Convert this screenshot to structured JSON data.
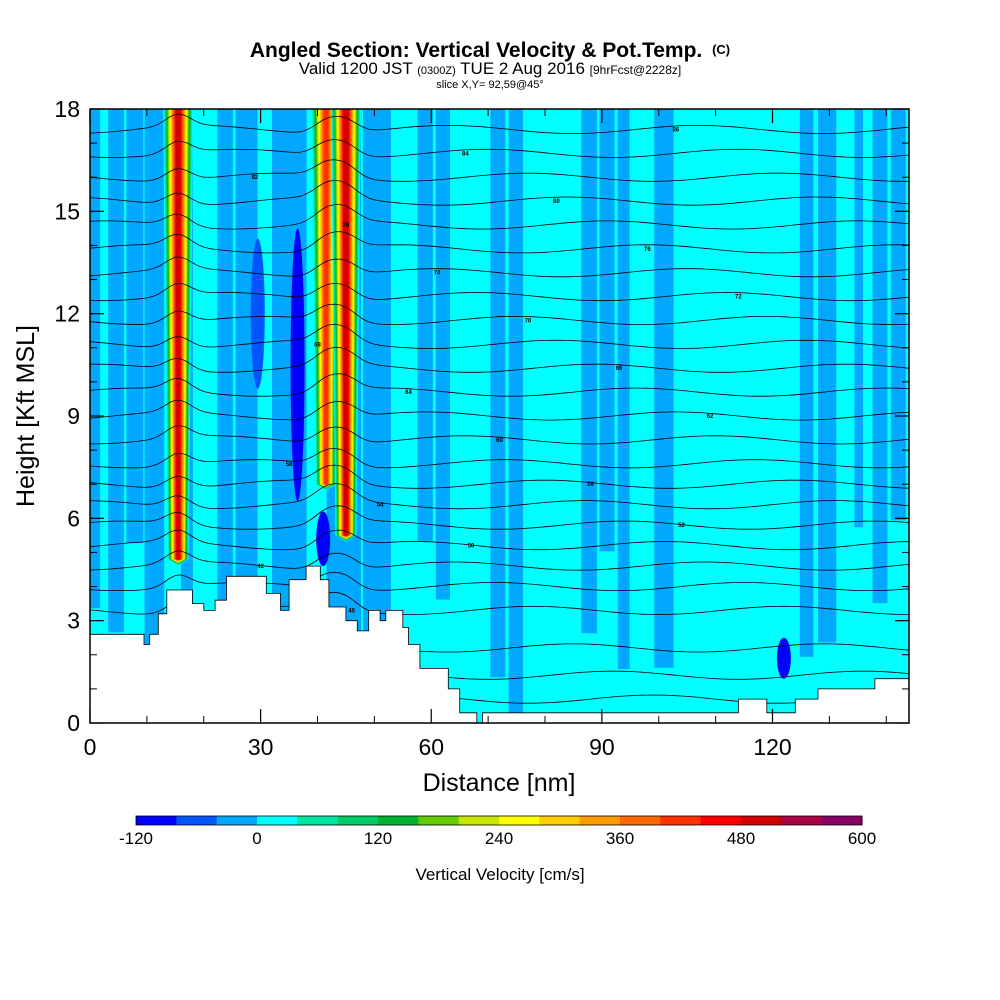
{
  "title": {
    "main": "Angled Section: Vertical Velocity & Pot.Temp.",
    "main_suffix": "(C)",
    "valid_prefix": "Valid 1200 JST",
    "valid_zulu": "(0300Z)",
    "valid_date": "TUE 2 Aug 2016",
    "valid_fcst": "[9hrFcst@2228z]",
    "slice": "slice X,Y= 92,59@45°"
  },
  "chart_data": {
    "type": "heatmap",
    "xlabel": "Distance [nm]",
    "ylabel": "Height [Kft MSL]",
    "xlim": [
      0,
      144
    ],
    "ylim": [
      0,
      18
    ],
    "x_ticks": [
      "0",
      "30",
      "60",
      "90",
      "120"
    ],
    "x_tick_values": [
      0,
      30,
      60,
      90,
      120
    ],
    "y_ticks": [
      "0",
      "3",
      "6",
      "9",
      "12",
      "15",
      "18"
    ],
    "y_tick_values": [
      0,
      3,
      6,
      9,
      12,
      15,
      18
    ],
    "x_minor_ticks": [
      10,
      20,
      40,
      50,
      70,
      80,
      100,
      110,
      130,
      140
    ],
    "y_minor_ticks": [
      1,
      2,
      4,
      5,
      7,
      8,
      10,
      11,
      13,
      14,
      16,
      17
    ],
    "background_value": 0,
    "updrafts": [
      {
        "x": 15.5,
        "y_bottom": 4.8,
        "y_top": 18,
        "peak": 490
      },
      {
        "x": 41.5,
        "y_bottom": 7.0,
        "y_top": 18,
        "peak": 420
      },
      {
        "x": 45.0,
        "y_bottom": 5.5,
        "y_top": 18,
        "peak": 500
      }
    ],
    "downdrafts": [
      {
        "x": 29.5,
        "y_bottom": 9.8,
        "y_top": 14.2,
        "value": -70
      },
      {
        "x": 36.5,
        "y_bottom": 6.5,
        "y_top": 14.5,
        "value": -90
      },
      {
        "x": 41.0,
        "y_bottom": 4.6,
        "y_top": 6.2,
        "value": -110
      },
      {
        "x": 122.0,
        "y_bottom": 1.3,
        "y_top": 2.5,
        "value": -90
      }
    ],
    "terrain_profile": [
      [
        0,
        2.6
      ],
      [
        9.5,
        2.6
      ],
      [
        9.5,
        2.3
      ],
      [
        10.5,
        2.3
      ],
      [
        10.5,
        2.6
      ],
      [
        12,
        2.6
      ],
      [
        12,
        3.2
      ],
      [
        13.5,
        3.2
      ],
      [
        13.5,
        3.9
      ],
      [
        18,
        3.9
      ],
      [
        18,
        3.5
      ],
      [
        20,
        3.5
      ],
      [
        20,
        3.3
      ],
      [
        22,
        3.3
      ],
      [
        22,
        3.6
      ],
      [
        24,
        3.6
      ],
      [
        24,
        4.3
      ],
      [
        31,
        4.3
      ],
      [
        31,
        3.8
      ],
      [
        33.5,
        3.8
      ],
      [
        33.5,
        3.3
      ],
      [
        35,
        3.3
      ],
      [
        35,
        4.2
      ],
      [
        38,
        4.2
      ],
      [
        38,
        4.6
      ],
      [
        40.5,
        4.6
      ],
      [
        40.5,
        4.2
      ],
      [
        42,
        4.2
      ],
      [
        42,
        3.4
      ],
      [
        45,
        3.4
      ],
      [
        45,
        3.0
      ],
      [
        47,
        3.0
      ],
      [
        47,
        2.7
      ],
      [
        49,
        2.7
      ],
      [
        49,
        3.3
      ],
      [
        51,
        3.3
      ],
      [
        51,
        3.0
      ],
      [
        52,
        3.0
      ],
      [
        52,
        3.3
      ],
      [
        55,
        3.3
      ],
      [
        55,
        2.8
      ],
      [
        56,
        2.8
      ],
      [
        56,
        2.3
      ],
      [
        58,
        2.3
      ],
      [
        58,
        1.6
      ],
      [
        63,
        1.6
      ],
      [
        63,
        1.0
      ],
      [
        65,
        1.0
      ],
      [
        65,
        0.3
      ],
      [
        68,
        0.3
      ],
      [
        68,
        0.0
      ],
      [
        69,
        0.0
      ],
      [
        69,
        0.3
      ],
      [
        114,
        0.3
      ],
      [
        114,
        0.7
      ],
      [
        119,
        0.7
      ],
      [
        119,
        0.3
      ],
      [
        124,
        0.3
      ],
      [
        124,
        0.7
      ],
      [
        128,
        0.7
      ],
      [
        128,
        1.0
      ],
      [
        138,
        1.0
      ],
      [
        138,
        1.3
      ],
      [
        144,
        1.3
      ]
    ],
    "theta_contours": [
      {
        "y": 0.7,
        "label": ""
      },
      {
        "y": 1.4,
        "label": ""
      },
      {
        "y": 2.2,
        "label": ""
      },
      {
        "y": 3.3,
        "label": "40"
      },
      {
        "y": 4.0,
        "label": ""
      },
      {
        "y": 4.6,
        "label": "42"
      },
      {
        "y": 5.2,
        "label": "50"
      },
      {
        "y": 5.8,
        "label": "52"
      },
      {
        "y": 6.4,
        "label": "54"
      },
      {
        "y": 7.0,
        "label": "56"
      },
      {
        "y": 7.6,
        "label": "58"
      },
      {
        "y": 8.3,
        "label": "60"
      },
      {
        "y": 9.0,
        "label": "62"
      },
      {
        "y": 9.7,
        "label": "64"
      },
      {
        "y": 10.4,
        "label": "66"
      },
      {
        "y": 11.1,
        "label": "68"
      },
      {
        "y": 11.8,
        "label": "70"
      },
      {
        "y": 12.5,
        "label": "72"
      },
      {
        "y": 13.2,
        "label": "74"
      },
      {
        "y": 13.9,
        "label": "76"
      },
      {
        "y": 14.6,
        "label": "78"
      },
      {
        "y": 15.3,
        "label": "80"
      },
      {
        "y": 16.0,
        "label": "82"
      },
      {
        "y": 16.7,
        "label": "84"
      },
      {
        "y": 17.4,
        "label": "86"
      }
    ]
  },
  "colorbar": {
    "title": "Vertical Velocity [cm/s]",
    "min": -120,
    "max": 600,
    "step": 40,
    "tick_labels": [
      "-120",
      "0",
      "120",
      "240",
      "360",
      "480",
      "600"
    ],
    "colors": [
      "#0000ff",
      "#0055ff",
      "#00a8ff",
      "#00ffff",
      "#00e6a0",
      "#00cc66",
      "#00b030",
      "#66cc00",
      "#c8e600",
      "#ffff00",
      "#ffcc00",
      "#ff9900",
      "#ff6600",
      "#ff3300",
      "#ff0000",
      "#d00000",
      "#aa0044",
      "#880066"
    ]
  }
}
